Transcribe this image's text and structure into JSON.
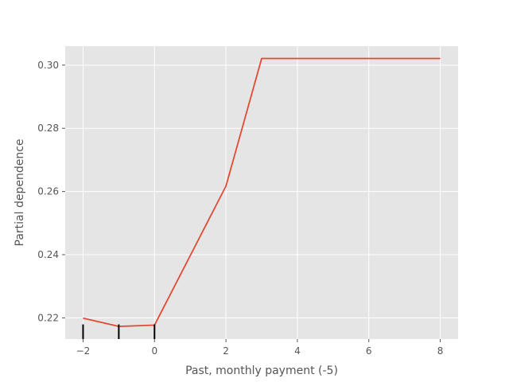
{
  "chart_data": {
    "type": "line",
    "title": "",
    "xlabel": "Past, monthly payment (-5)",
    "ylabel": "Partial dependence",
    "xlim": [
      -2.5,
      8.5
    ],
    "ylim": [
      0.2133,
      0.306
    ],
    "xticks": [
      -2,
      0,
      2,
      4,
      6,
      8
    ],
    "xtick_labels": [
      "−2",
      "0",
      "2",
      "4",
      "6",
      "8"
    ],
    "yticks": [
      0.22,
      0.24,
      0.26,
      0.28,
      0.3
    ],
    "ytick_labels": [
      "0.22",
      "0.24",
      "0.26",
      "0.28",
      "0.30"
    ],
    "grid": true,
    "series": [
      {
        "color": "#e24a33",
        "x": [
          -2,
          -1,
          0,
          2,
          3,
          4,
          5,
          6,
          7,
          8
        ],
        "y": [
          0.2199,
          0.2173,
          0.2177,
          0.2617,
          0.3021,
          0.3021,
          0.3021,
          0.3021,
          0.3021,
          0.3021
        ]
      }
    ],
    "rug": {
      "color": "#000000",
      "x": [
        -2,
        -1,
        0
      ]
    },
    "background_color": "#e5e5e5",
    "grid_color": "#ffffff"
  }
}
